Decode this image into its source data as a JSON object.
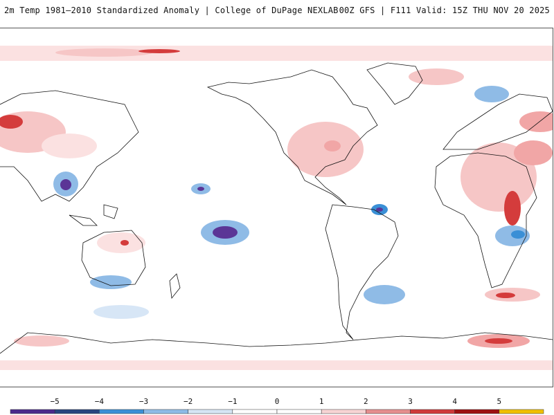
{
  "header": {
    "title_left": "2m Temp 1981–2010 Standardized Anomaly | College of DuPage NEXLAB",
    "title_right": "00Z GFS | F111 Valid: 15Z THU NOV 20 2025"
  },
  "colorbar": {
    "labels": [
      "−5",
      "−4",
      "−3",
      "−2",
      "−1",
      "0",
      "1",
      "2",
      "3",
      "4",
      "5"
    ],
    "colors": [
      "#4b2a8c",
      "#27457f",
      "#3a8fd6",
      "#8dbbe6",
      "#d5e5f4",
      "#ffffff",
      "#ffffff",
      "#f7d4d4",
      "#e58e8e",
      "#d03a3a",
      "#9e1010",
      "#f0c000"
    ]
  },
  "colors": {
    "land_outline": "#111111",
    "warm_light": "#fbe1e1",
    "warm_mid": "#f1a6a6",
    "warm_strong": "#d43c3c",
    "warm_extreme": "#9a1010",
    "cool_light": "#d7e6f6",
    "cool_mid": "#8fbbe6",
    "cool_strong": "#3a8fd6",
    "cool_extreme": "#5b3596"
  }
}
